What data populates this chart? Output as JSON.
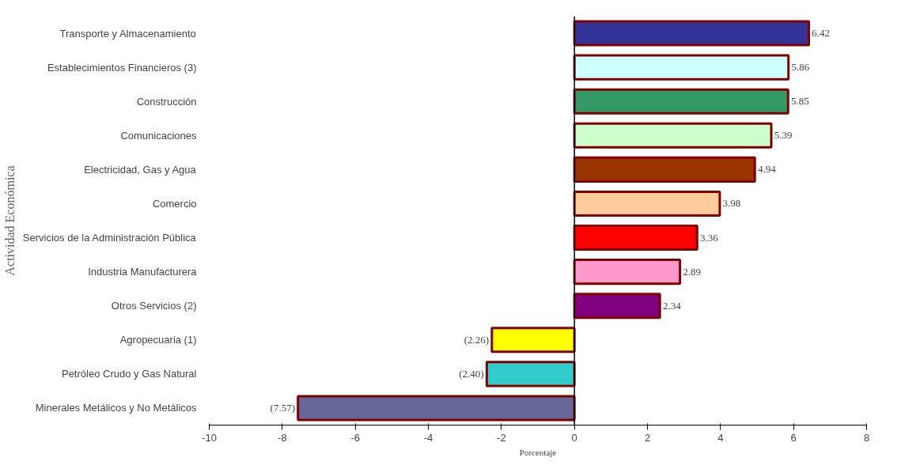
{
  "chart_data": {
    "type": "bar",
    "orientation": "horizontal",
    "xlabel": "Porcentaje",
    "ylabel": "Actividad Económica",
    "categories": [
      "Transporte y Almacenamiento",
      "Establecimientos Financieros (3)",
      "Construcción",
      "Comunicaciones",
      "Electricidad, Gas y Agua",
      "Comercio",
      "Servicios de la Administración Pública",
      "Industria Manufacturera",
      "Otros Servicios (2)",
      "Agropecuaria (1)",
      "Petróleo Crudo y Gas Natural",
      "Minerales Metálicos y No Metálicos"
    ],
    "values": [
      6.42,
      5.86,
      5.85,
      5.39,
      4.94,
      3.98,
      3.36,
      2.89,
      2.34,
      -2.26,
      -2.4,
      -7.57
    ],
    "value_labels": [
      "6.42",
      "5.86",
      "5.85",
      "5.39",
      "4.94",
      "3.98",
      "3.36",
      "2.89",
      "2.34",
      "(2.26)",
      "(2.40)",
      "(7.57)"
    ],
    "colors": [
      "#333399",
      "#ccffff",
      "#339966",
      "#ccffcc",
      "#993300",
      "#ffcc99",
      "#ff0000",
      "#ff99cc",
      "#800080",
      "#ffff00",
      "#33cccc",
      "#666699"
    ],
    "xlim": [
      -10,
      8
    ],
    "xticks": [
      -10,
      -8,
      -6,
      -4,
      -2,
      0,
      2,
      4,
      6,
      8
    ]
  }
}
